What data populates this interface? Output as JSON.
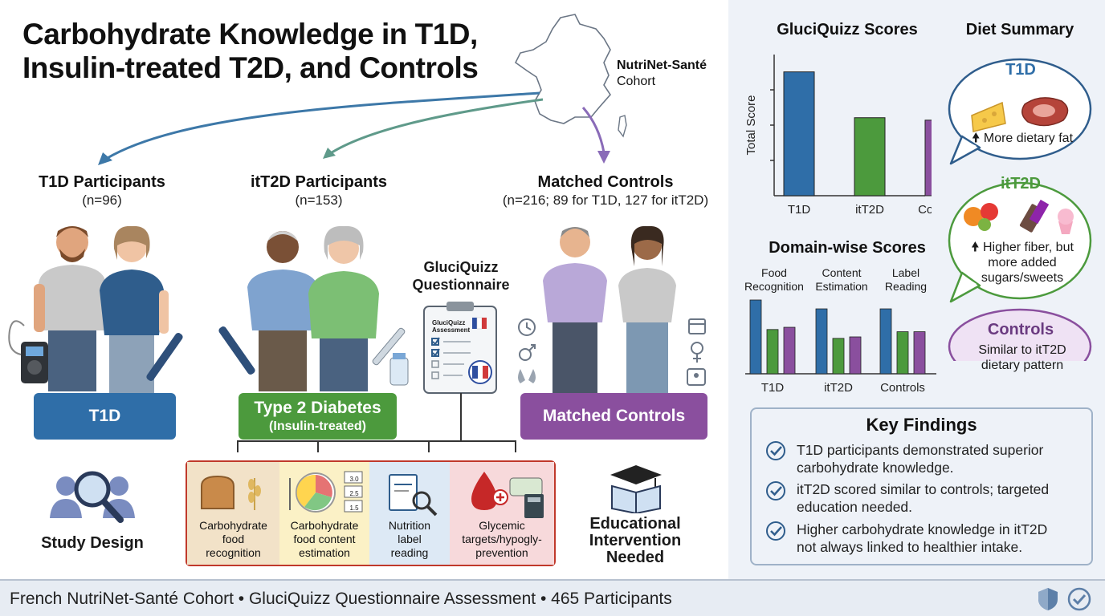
{
  "title_line1": "Carbohydrate Knowledge in T1D,",
  "title_line2": "Insulin-treated T2D, and Controls",
  "cohort": {
    "name": "NutriNet-Santé",
    "suffix": "Cohort"
  },
  "groups": {
    "t1d": {
      "heading": "T1D Participants",
      "count": "(n=96)",
      "box_label": "T1D"
    },
    "t2d": {
      "heading": "itT2D Participants",
      "count": "(n=153)",
      "box_label": "Type 2 Diabetes",
      "box_sub": "(Insulin-treated)"
    },
    "controls": {
      "heading": "Matched Controls",
      "count": "(n=216; 89 for T1D, 127 for itT2D)",
      "box_label": "Matched Controls"
    }
  },
  "questionnaire": {
    "label_line1": "GluciQuizz",
    "label_line2": "Questionnaire",
    "clipboard_line1": "GluciQuizz",
    "clipboard_line2": "Assessment"
  },
  "domains": [
    {
      "line1": "Carbohydrate",
      "line2": "food",
      "line3": "recognition",
      "color": "#f2e2c8"
    },
    {
      "line1": "Carbohydrate",
      "line2": "food content",
      "line3": "estimation",
      "color": "#fbf1c6"
    },
    {
      "line1": "Nutrition",
      "line2": "label",
      "line3": "reading",
      "color": "#dde9f5"
    },
    {
      "line1": "Glycemic",
      "line2": "targets/hypogly-",
      "line3": "prevention",
      "color": "#f7d9db"
    }
  ],
  "portion_values": [
    "3.0",
    "2.5",
    "1.5"
  ],
  "study_design": "Study Design",
  "education": {
    "line1": "Educational",
    "line2": "Intervention",
    "line3": "Needed"
  },
  "scores_chart": {
    "title": "GluciQuizz Scores",
    "ylabel": "Total Score",
    "categories": [
      "T1D",
      "itT2D",
      "Controls"
    ],
    "values": [
      100,
      63,
      61
    ],
    "colors": [
      "#2f6ea8",
      "#4c9a3d",
      "#8a4f9e"
    ]
  },
  "domain_chart": {
    "title": "Domain-wise Scores",
    "domain_labels": [
      {
        "line1": "Food",
        "line2": "Recognition"
      },
      {
        "line1": "Content",
        "line2": "Estimation"
      },
      {
        "line1": "Label",
        "line2": "Reading"
      }
    ],
    "groups": [
      "T1D",
      "itT2D",
      "Controls"
    ],
    "values": [
      [
        100,
        60,
        63
      ],
      [
        88,
        48,
        50
      ],
      [
        88,
        57,
        57
      ]
    ],
    "colors": [
      "#2f6ea8",
      "#4c9a3d",
      "#8a4f9e"
    ]
  },
  "diet_summary": {
    "title": "Diet Summary",
    "t1d": {
      "label": "T1D",
      "text": "More dietary fat"
    },
    "t2d": {
      "label": "itT2D",
      "line1": "Higher fiber, but",
      "line2": "more added",
      "line3": "sugars/sweets"
    },
    "controls": {
      "label": "Controls",
      "line1": "Similar to itT2D",
      "line2": "dietary pattern"
    }
  },
  "key_findings": {
    "title": "Key Findings",
    "items": [
      {
        "line1": "T1D participants demonstrated superior",
        "line2": "carbohydrate knowledge."
      },
      {
        "line1": "itT2D scored similar to controls; targeted",
        "line2": "education needed."
      },
      {
        "line1": "Higher carbohydrate knowledge in itT2D",
        "line2": "not always linked to healthier intake."
      }
    ]
  },
  "footer": "French NutriNet-Santé Cohort • GluciQuizz Questionnaire Assessment • 465 Participants"
}
